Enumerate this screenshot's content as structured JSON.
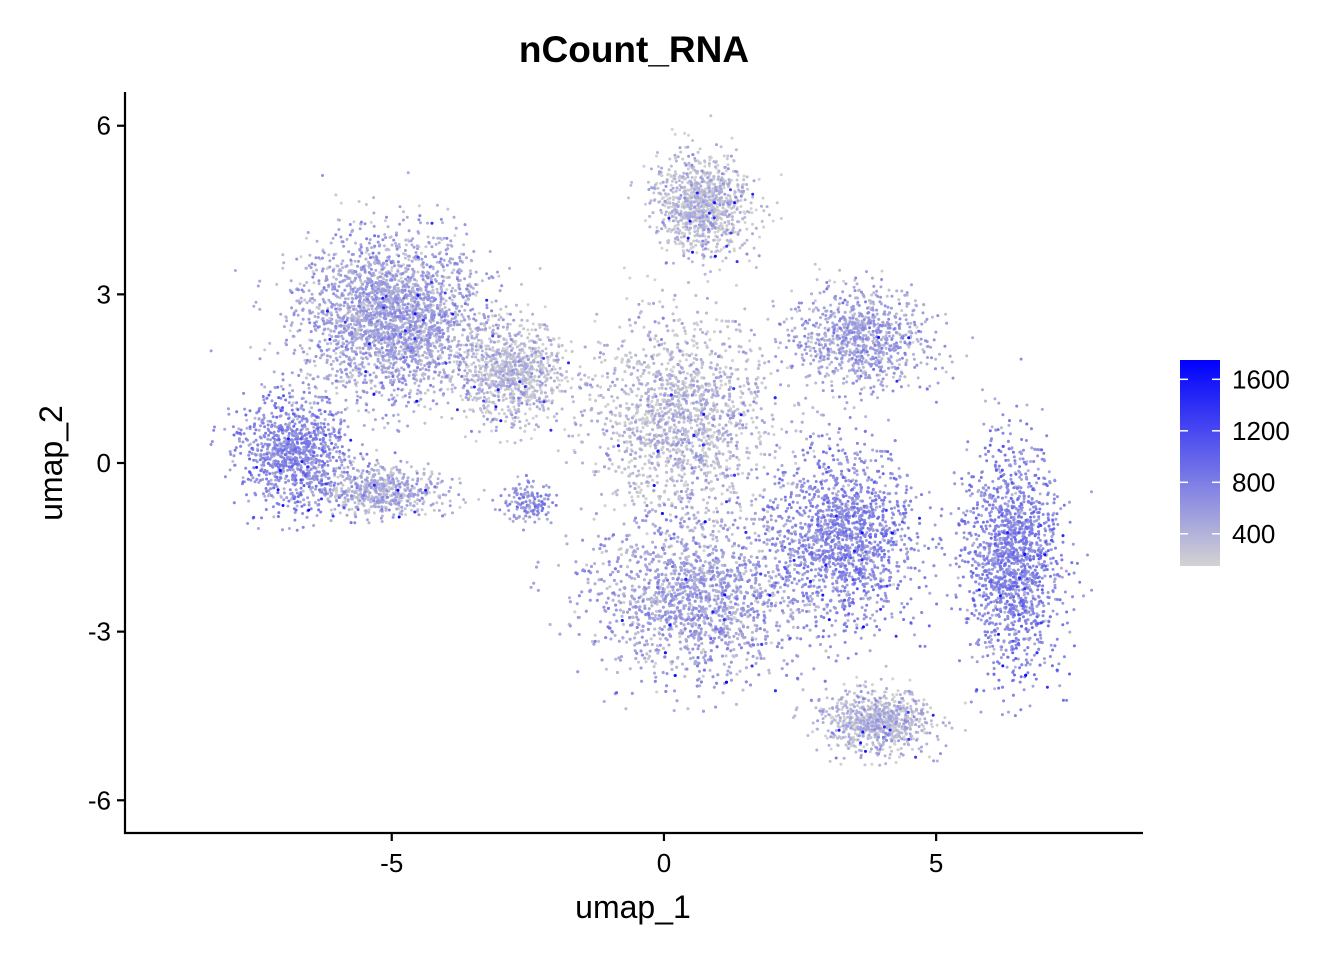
{
  "chart_data": {
    "type": "scatter",
    "title": "nCount_RNA",
    "xlabel": "umap_1",
    "ylabel": "umap_2",
    "xlim": [
      -9.9,
      8.8
    ],
    "ylim": [
      -6.6,
      6.6
    ],
    "x_ticks": [
      -5,
      0,
      5
    ],
    "x_tick_labels": [
      "-5",
      "0",
      "5"
    ],
    "y_ticks": [
      -6,
      -3,
      0,
      3,
      6
    ],
    "y_tick_labels": [
      "-6",
      "-3",
      "0",
      "3",
      "6"
    ],
    "grid": false,
    "legend_position": "right",
    "color_scale": {
      "low_color": "#d3d3d3",
      "high_color": "#0000ff",
      "min": 150,
      "max": 1750,
      "breaks": [
        400,
        800,
        1200,
        1600
      ],
      "break_labels": [
        "400",
        "800",
        "1200",
        "1600"
      ]
    },
    "clusters": [
      {
        "center": [
          -5.0,
          2.6
        ],
        "spread": [
          1.5,
          1.3
        ],
        "count": 2600,
        "level": 450
      },
      {
        "center": [
          -6.8,
          0.2
        ],
        "spread": [
          0.9,
          0.9
        ],
        "count": 1000,
        "level": 650
      },
      {
        "center": [
          -5.2,
          -0.5
        ],
        "spread": [
          1.1,
          0.4
        ],
        "count": 600,
        "level": 380
      },
      {
        "center": [
          -2.8,
          1.6
        ],
        "spread": [
          0.9,
          0.8
        ],
        "count": 900,
        "level": 280
      },
      {
        "center": [
          -2.5,
          -0.7
        ],
        "spread": [
          0.4,
          0.35
        ],
        "count": 150,
        "level": 600
      },
      {
        "center": [
          0.7,
          4.6
        ],
        "spread": [
          0.8,
          0.8
        ],
        "count": 1000,
        "level": 280
      },
      {
        "center": [
          3.6,
          2.2
        ],
        "spread": [
          1.2,
          0.8
        ],
        "count": 900,
        "level": 480
      },
      {
        "center": [
          0.3,
          0.8
        ],
        "spread": [
          1.5,
          1.6
        ],
        "count": 2600,
        "level": 300
      },
      {
        "center": [
          0.6,
          -2.4
        ],
        "spread": [
          1.8,
          1.3
        ],
        "count": 3000,
        "level": 480
      },
      {
        "center": [
          3.3,
          -1.3
        ],
        "spread": [
          1.2,
          1.4
        ],
        "count": 1700,
        "level": 650
      },
      {
        "center": [
          6.4,
          -1.7
        ],
        "spread": [
          0.8,
          1.8
        ],
        "count": 1700,
        "level": 680
      },
      {
        "center": [
          3.9,
          -4.6
        ],
        "spread": [
          0.9,
          0.5
        ],
        "count": 800,
        "level": 320
      }
    ]
  }
}
